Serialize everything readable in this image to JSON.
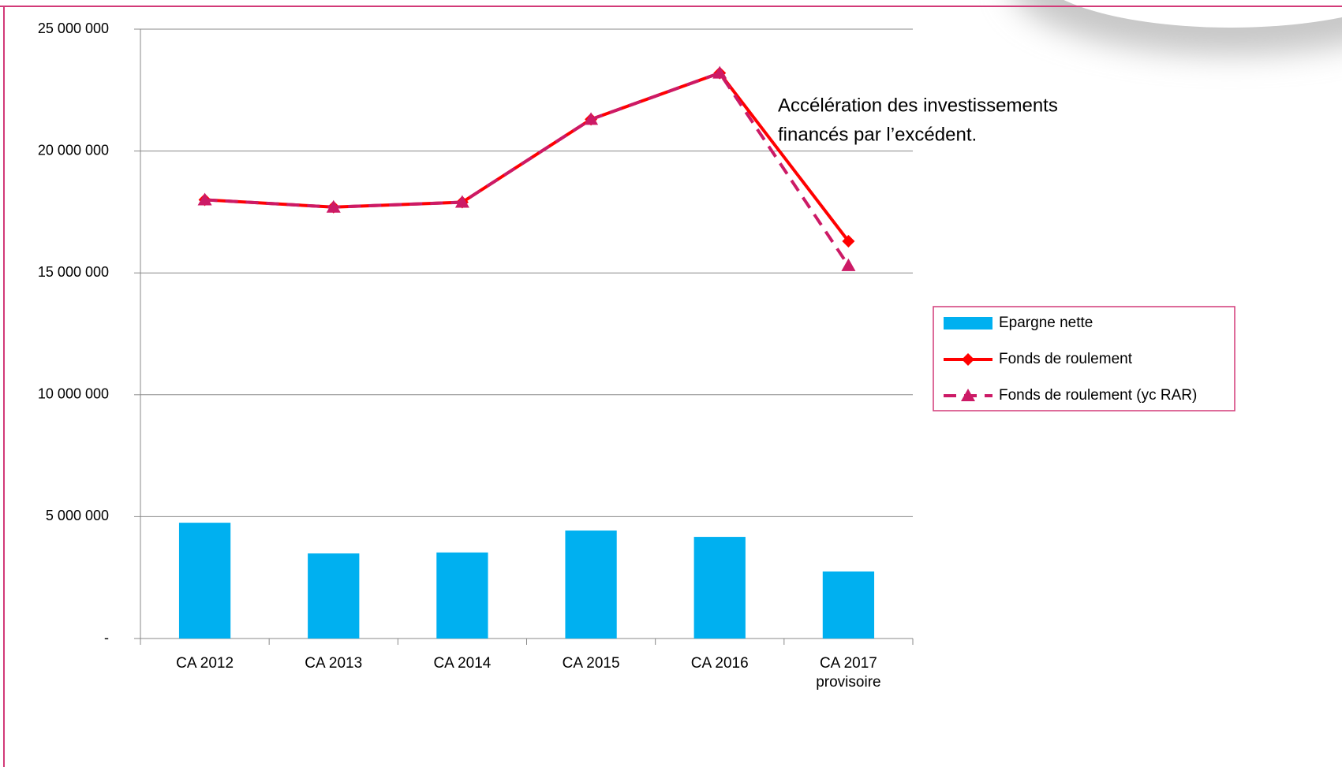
{
  "chart_data": {
    "type": "combo",
    "categories": [
      "CA 2012",
      "CA 2013",
      "CA 2014",
      "CA 2015",
      "CA 2016",
      "CA 2017 provisoire"
    ],
    "series": [
      {
        "name": "Epargne nette",
        "type": "bar",
        "color": "#00b0f0",
        "values": [
          4750000,
          3490000,
          3530000,
          4430000,
          4170000,
          2750000
        ]
      },
      {
        "name": "Fonds de roulement",
        "type": "line",
        "color": "#ff0000",
        "marker": "diamond",
        "dash": false,
        "values": [
          18000000,
          17700000,
          17900000,
          21300000,
          23200000,
          16300000
        ]
      },
      {
        "name": "Fonds de roulement (yc RAR)",
        "type": "line",
        "color": "#cc1a66",
        "marker": "triangle",
        "dash": true,
        "values": [
          18000000,
          17700000,
          17900000,
          21300000,
          23200000,
          15300000
        ]
      }
    ],
    "ylim": [
      0,
      25000000
    ],
    "yticks": [
      {
        "value": 0,
        "label": "-"
      },
      {
        "value": 5000000,
        "label": "5 000 000"
      },
      {
        "value": 10000000,
        "label": "10 000 000"
      },
      {
        "value": 15000000,
        "label": "15 000 000"
      },
      {
        "value": 20000000,
        "label": "20 000 000"
      },
      {
        "value": 25000000,
        "label": "25 000 000"
      }
    ],
    "grid": true,
    "legend": "right",
    "annotation": [
      "Accélération des investissements",
      "financés par l’excédent."
    ]
  }
}
